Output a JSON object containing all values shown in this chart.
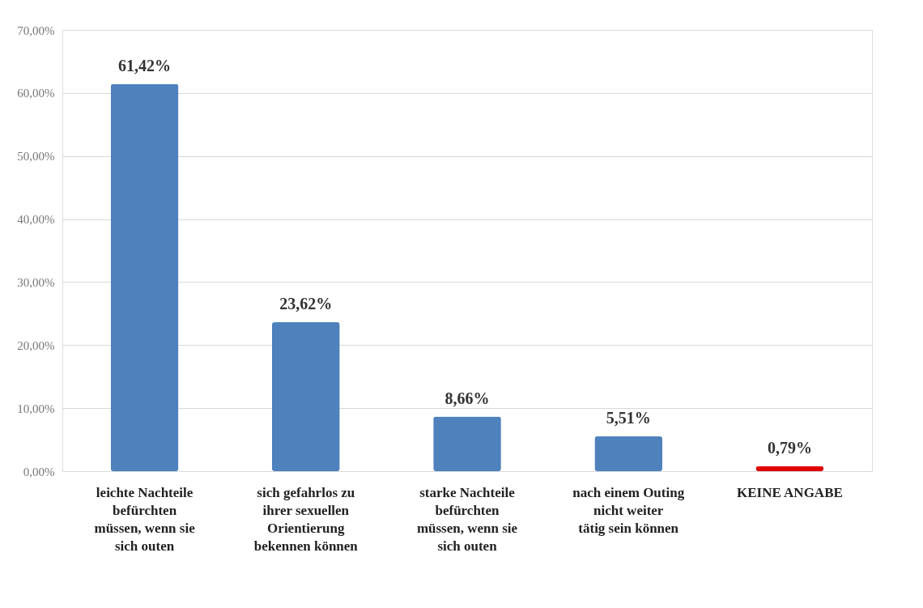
{
  "chart_data": {
    "type": "bar",
    "categories": [
      "leichte Nachteile befürchten müssen, wenn sie sich outen",
      "sich gefahrlos zu ihrer sexuellen Orientierung bekennen können",
      "starke Nachteile befürchten müssen, wenn sie sich outen",
      "nach einem Outing nicht weiter tätig sein können",
      "KEINE ANGABE"
    ],
    "values": [
      61.42,
      23.62,
      8.66,
      5.51,
      0.79
    ],
    "value_labels": [
      "61,42%",
      "23,62%",
      "8,66%",
      "5,51%",
      "0,79%"
    ],
    "colors": [
      "#4f81bd",
      "#4f81bd",
      "#4f81bd",
      "#4f81bd",
      "#e00000"
    ],
    "ylim": [
      0,
      70
    ],
    "yticks": [
      {
        "value": 0,
        "label": "0,00%"
      },
      {
        "value": 10,
        "label": "10,00%"
      },
      {
        "value": 20,
        "label": "20,00%"
      },
      {
        "value": 30,
        "label": "30,00%"
      },
      {
        "value": 40,
        "label": "40,00%"
      },
      {
        "value": 50,
        "label": "50,00%"
      },
      {
        "value": 60,
        "label": "60,00%"
      },
      {
        "value": 70,
        "label": "70,00%"
      }
    ],
    "grid": "y"
  }
}
